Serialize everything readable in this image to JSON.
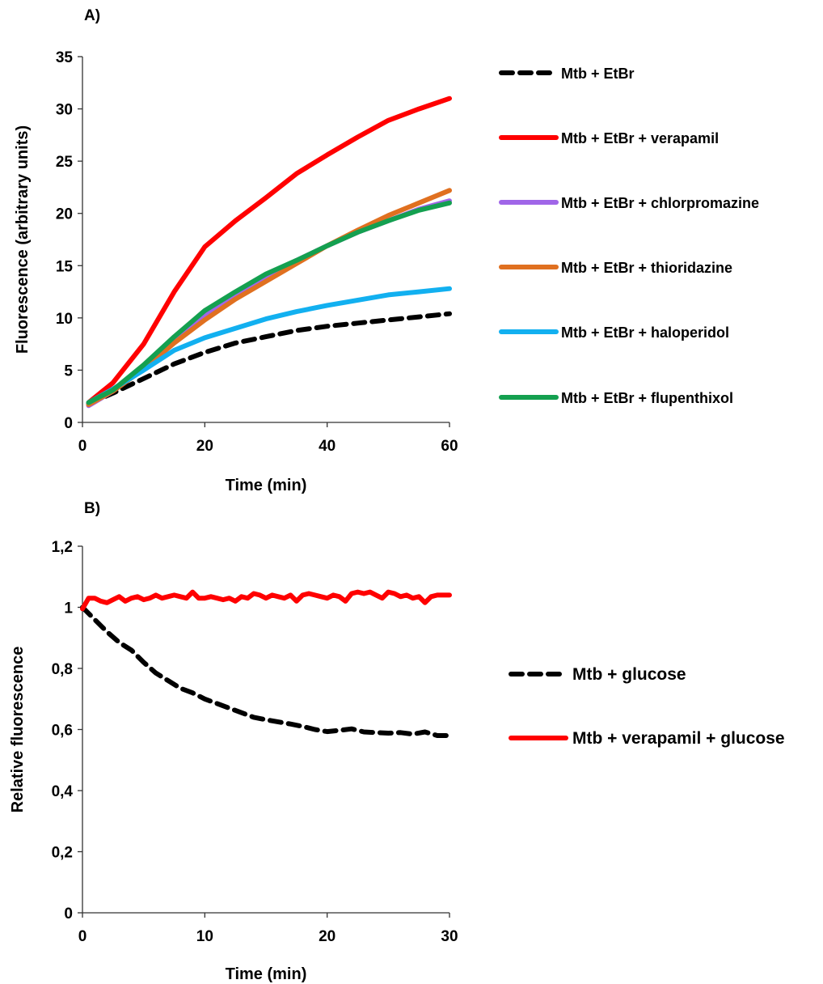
{
  "chart_data": [
    {
      "panel_label": "A)",
      "type": "line",
      "xlabel": "Time (min)",
      "ylabel": "Fluorescence (arbitrary units)",
      "xlim": [
        0,
        60
      ],
      "ylim": [
        0,
        35
      ],
      "x_ticks": [
        "0",
        "20",
        "40",
        "60"
      ],
      "y_ticks": [
        "0",
        "5",
        "10",
        "15",
        "20",
        "25",
        "30",
        "35"
      ],
      "grid": false,
      "legend_position": "right",
      "x": [
        1,
        5,
        10,
        15,
        20,
        25,
        30,
        35,
        40,
        45,
        50,
        55,
        60
      ],
      "series": [
        {
          "name": "Mtb + EtBr",
          "color": "#000000",
          "style": "dashed",
          "values": [
            1.8,
            2.8,
            4.2,
            5.6,
            6.7,
            7.6,
            8.2,
            8.8,
            9.2,
            9.5,
            9.8,
            10.1,
            10.4
          ]
        },
        {
          "name": "Mtb + EtBr + verapamil",
          "color": "#FF0000",
          "style": "solid",
          "values": [
            1.9,
            3.8,
            7.5,
            12.5,
            16.8,
            19.3,
            21.5,
            23.8,
            25.6,
            27.3,
            28.9,
            30.0,
            31.0
          ]
        },
        {
          "name": "Mtb + EtBr + chlorpromazine",
          "color": "#A066E8",
          "style": "solid",
          "values": [
            1.6,
            3.0,
            5.3,
            7.9,
            10.2,
            12.2,
            13.9,
            15.5,
            16.9,
            18.2,
            19.3,
            20.4,
            21.2
          ]
        },
        {
          "name": "Mtb + EtBr + thioridazine",
          "color": "#E07020",
          "style": "solid",
          "values": [
            1.7,
            3.0,
            5.1,
            7.6,
            9.8,
            11.8,
            13.5,
            15.2,
            16.9,
            18.4,
            19.8,
            21.0,
            22.2
          ]
        },
        {
          "name": "Mtb + EtBr + haloperidol",
          "color": "#12B0F0",
          "style": "solid",
          "values": [
            1.9,
            3.2,
            5.0,
            6.9,
            8.1,
            9.0,
            9.9,
            10.6,
            11.2,
            11.7,
            12.2,
            12.5,
            12.8
          ]
        },
        {
          "name": "Mtb + EtBr + flupenthixol",
          "color": "#14A050",
          "style": "solid",
          "values": [
            1.9,
            3.1,
            5.5,
            8.2,
            10.7,
            12.5,
            14.2,
            15.5,
            16.9,
            18.2,
            19.3,
            20.3,
            21.0
          ]
        }
      ]
    },
    {
      "panel_label": "B)",
      "type": "line",
      "xlabel": "Time (min)",
      "ylabel": "Relative fluorescence",
      "xlim": [
        0,
        30
      ],
      "ylim": [
        0,
        1.2
      ],
      "x_ticks": [
        "0",
        "10",
        "20",
        "30"
      ],
      "y_ticks": [
        "0",
        "0,2",
        "0,4",
        "0,6",
        "0,8",
        "1",
        "1,2"
      ],
      "grid": false,
      "legend_position": "right",
      "series": [
        {
          "name": "Mtb + glucose",
          "color": "#000000",
          "style": "dashed",
          "x": [
            0,
            1,
            2,
            3,
            4,
            5,
            6,
            7,
            8,
            9,
            10,
            11,
            12,
            13,
            14,
            15,
            16,
            17,
            18,
            19,
            20,
            21,
            22,
            23,
            24,
            25,
            26,
            27,
            28,
            29,
            30
          ],
          "values": [
            1.0,
            0.96,
            0.92,
            0.885,
            0.86,
            0.82,
            0.785,
            0.76,
            0.735,
            0.72,
            0.7,
            0.685,
            0.67,
            0.655,
            0.64,
            0.632,
            0.625,
            0.618,
            0.61,
            0.6,
            0.593,
            0.597,
            0.602,
            0.592,
            0.59,
            0.588,
            0.59,
            0.585,
            0.592,
            0.58,
            0.58
          ]
        },
        {
          "name": "Mtb + verapamil + glucose",
          "color": "#FF0000",
          "style": "solid",
          "x": [
            0,
            0.5,
            1,
            1.5,
            2,
            2.5,
            3,
            3.5,
            4,
            4.5,
            5,
            5.5,
            6,
            6.5,
            7,
            7.5,
            8,
            8.5,
            9,
            9.5,
            10,
            10.5,
            11,
            11.5,
            12,
            12.5,
            13,
            13.5,
            14,
            14.5,
            15,
            15.5,
            16,
            16.5,
            17,
            17.5,
            18,
            18.5,
            19,
            19.5,
            20,
            20.5,
            21,
            21.5,
            22,
            22.5,
            23,
            23.5,
            24,
            24.5,
            25,
            25.5,
            26,
            26.5,
            27,
            27.5,
            28,
            28.5,
            29,
            29.5,
            30
          ],
          "values": [
            0.995,
            1.03,
            1.03,
            1.02,
            1.015,
            1.025,
            1.035,
            1.02,
            1.03,
            1.035,
            1.025,
            1.03,
            1.04,
            1.03,
            1.035,
            1.04,
            1.035,
            1.03,
            1.05,
            1.03,
            1.03,
            1.035,
            1.03,
            1.025,
            1.03,
            1.02,
            1.035,
            1.03,
            1.045,
            1.04,
            1.03,
            1.04,
            1.035,
            1.03,
            1.04,
            1.02,
            1.04,
            1.045,
            1.04,
            1.035,
            1.03,
            1.04,
            1.035,
            1.02,
            1.045,
            1.05,
            1.045,
            1.05,
            1.04,
            1.03,
            1.05,
            1.045,
            1.035,
            1.04,
            1.03,
            1.035,
            1.015,
            1.035,
            1.04,
            1.04,
            1.04
          ]
        }
      ]
    }
  ]
}
